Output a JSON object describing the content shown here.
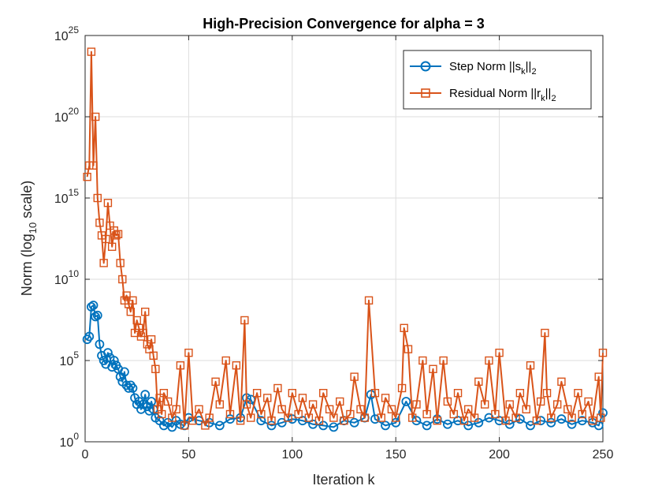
{
  "chart_data": {
    "type": "line",
    "title": "High-Precision Convergence for alpha = 3",
    "xlabel": "Iteration k",
    "ylabel": {
      "main": "Norm (log",
      "sub": "10",
      "tail": " scale)"
    },
    "xlim": [
      0,
      250
    ],
    "ylim": [
      1,
      1e+25
    ],
    "yscale": "log",
    "grid": true,
    "legend_location": "top-right",
    "x_ticks": [
      "0",
      "50",
      "100",
      "150",
      "200",
      "250"
    ],
    "y_ticks": [
      {
        "base": "10",
        "exp": "0"
      },
      {
        "base": "10",
        "exp": "5"
      },
      {
        "base": "10",
        "exp": "10"
      },
      {
        "base": "10",
        "exp": "15"
      },
      {
        "base": "10",
        "exp": "20"
      },
      {
        "base": "10",
        "exp": "25"
      }
    ],
    "series": [
      {
        "name": "Step Norm ||s_k||_2",
        "legend": {
          "pre": "Step Norm ||s",
          "sub1": "k",
          "mid": "||",
          "sub2": "2",
          "post": ""
        },
        "color": "#0072BD",
        "marker": "circle",
        "x": [
          1,
          2,
          3,
          4,
          5,
          6,
          7,
          8,
          9,
          10,
          11,
          12,
          13,
          14,
          15,
          16,
          17,
          18,
          19,
          20,
          21,
          22,
          23,
          24,
          25,
          26,
          27,
          28,
          29,
          30,
          31,
          32,
          33,
          34,
          36,
          38,
          40,
          42,
          44,
          46,
          48,
          50,
          55,
          60,
          65,
          70,
          75,
          78,
          80,
          85,
          90,
          95,
          100,
          105,
          110,
          115,
          120,
          125,
          130,
          135,
          138,
          140,
          145,
          150,
          155,
          160,
          165,
          170,
          175,
          180,
          185,
          190,
          195,
          200,
          205,
          210,
          215,
          220,
          225,
          230,
          235,
          240,
          245,
          248,
          250
        ],
        "y": [
          2000000.0,
          3000000.0,
          200000000.0,
          250000000.0,
          50000000.0,
          60000000.0,
          1000000.0,
          200000.0,
          100000.0,
          60000.0,
          300000.0,
          150000.0,
          40000.0,
          100000.0,
          50000.0,
          30000.0,
          10000.0,
          5000.0,
          20000.0,
          3000.0,
          2000.0,
          3000.0,
          2000.0,
          500,
          200,
          300,
          100,
          200,
          800,
          150,
          80,
          300,
          100,
          30,
          20,
          10,
          15,
          8,
          20,
          12,
          10,
          30,
          20,
          15,
          10,
          25,
          30,
          500,
          400,
          20,
          10,
          15,
          25,
          20,
          12,
          10,
          8,
          20,
          15,
          30,
          800,
          25,
          10,
          15,
          300,
          20,
          10,
          25,
          12,
          20,
          10,
          15,
          30,
          20,
          12,
          25,
          10,
          20,
          15,
          25,
          12,
          20,
          15,
          10,
          60
        ]
      },
      {
        "name": "Residual Norm ||r_k||_2",
        "legend": {
          "pre": "Residual Norm ||r",
          "sub1": "k",
          "mid": "||",
          "sub2": "2",
          "post": ""
        },
        "color": "#D95319",
        "marker": "square",
        "x": [
          1,
          2,
          3,
          4,
          5,
          6,
          7,
          8,
          9,
          10,
          11,
          12,
          13,
          14,
          15,
          16,
          17,
          18,
          19,
          20,
          21,
          22,
          23,
          24,
          25,
          26,
          27,
          28,
          29,
          30,
          31,
          32,
          33,
          34,
          35,
          36,
          37,
          38,
          40,
          42,
          44,
          46,
          48,
          50,
          52,
          55,
          58,
          60,
          63,
          65,
          68,
          70,
          73,
          75,
          77,
          78,
          80,
          83,
          85,
          88,
          90,
          93,
          95,
          98,
          100,
          103,
          105,
          108,
          110,
          113,
          115,
          118,
          120,
          123,
          125,
          128,
          130,
          133,
          135,
          137,
          140,
          143,
          145,
          148,
          150,
          153,
          154,
          156,
          158,
          160,
          163,
          165,
          168,
          170,
          173,
          175,
          178,
          180,
          183,
          185,
          188,
          190,
          193,
          195,
          198,
          200,
          203,
          205,
          208,
          210,
          213,
          215,
          218,
          220,
          222,
          223,
          225,
          228,
          230,
          233,
          235,
          238,
          240,
          243,
          245,
          248,
          249,
          250
        ],
        "y": [
          2e+16,
          1e+17,
          1e+24,
          1e+17,
          1e+20,
          1000000000000000.0,
          30000000000000.0,
          5000000000000.0,
          100000000000.0,
          3000000000000.0,
          500000000000000.0,
          20000000000000.0,
          1000000000000.0,
          10000000000000.0,
          5000000000000.0,
          6000000000000.0,
          100000000000.0,
          10000000000.0,
          500000000.0,
          1000000000.0,
          300000000.0,
          100000000.0,
          500000000.0,
          5000000.0,
          30000000.0,
          10000000.0,
          3000000.0,
          5000000.0,
          100000000.0,
          1000000.0,
          500000.0,
          2000000.0,
          200000.0,
          30000.0,
          100,
          500,
          50,
          1000,
          300,
          30,
          100,
          50000.0,
          10,
          300000.0,
          20,
          100,
          10,
          30,
          5000.0,
          200,
          100000.0,
          50,
          50000.0,
          20,
          30000000.0,
          200,
          30,
          1000.0,
          50,
          500,
          20,
          2000.0,
          100,
          30,
          1000.0,
          50,
          500,
          30,
          200,
          20,
          1000.0,
          100,
          30,
          300,
          20,
          50,
          10000.0,
          100,
          30,
          500000000.0,
          1000.0,
          30,
          500,
          100,
          30,
          2000.0,
          10000000.0,
          500000.0,
          30,
          200,
          100000.0,
          50,
          30000.0,
          20,
          100000.0,
          300,
          50,
          1000.0,
          20,
          100,
          30,
          5000.0,
          200,
          100000.0,
          50,
          300000.0,
          20,
          200,
          30,
          1000.0,
          100,
          50000.0,
          20,
          300,
          5000000.0,
          1000.0,
          30,
          200,
          5000.0,
          100,
          30,
          1000.0,
          50,
          300,
          20,
          10000.0,
          30,
          300000.0
        ]
      }
    ]
  }
}
